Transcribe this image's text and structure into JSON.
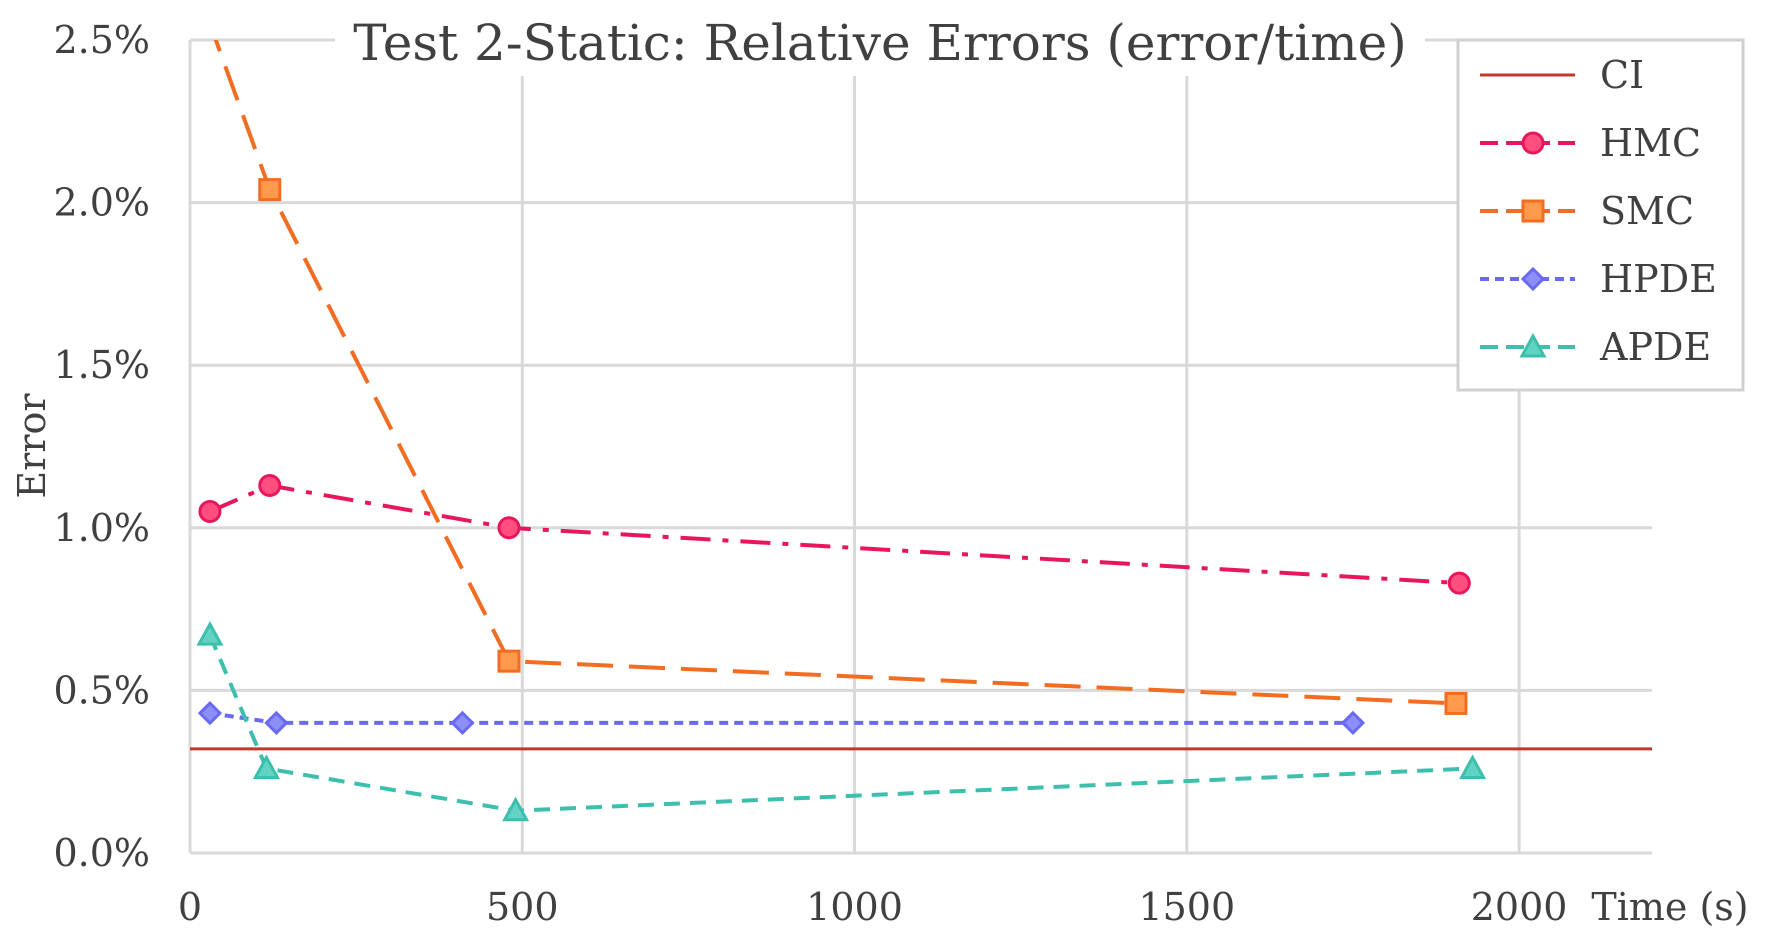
{
  "chart_data": {
    "type": "line",
    "title": "Test 2-Static: Relative Errors (error/time)",
    "xlabel": "Time (s)",
    "ylabel": "Error",
    "xlim": [
      0,
      2200
    ],
    "ylim": [
      0,
      2.5
    ],
    "x_ticks": [
      0,
      500,
      1000,
      1500,
      2000
    ],
    "x_tick_labels": [
      "0",
      "500",
      "1000",
      "1500",
      "2000"
    ],
    "y_ticks": [
      0,
      0.5,
      1.0,
      1.5,
      2.0,
      2.5
    ],
    "y_tick_labels": [
      "0.0%",
      "0.5%",
      "1.0%",
      "1.5%",
      "2.0%",
      "2.5%"
    ],
    "grid": true,
    "legend_position": "top-right",
    "series": [
      {
        "name": "CI",
        "color": "#c0392b",
        "dash": "solid",
        "marker": "none",
        "x": [
          0,
          2200
        ],
        "y": [
          0.32,
          0.32
        ]
      },
      {
        "name": "HMC",
        "color": "#e8175d",
        "dash": "dashdot",
        "marker": "circle",
        "x": [
          30,
          120,
          480,
          1910
        ],
        "y": [
          1.05,
          1.13,
          1.0,
          0.83
        ]
      },
      {
        "name": "SMC",
        "color": "#f26d21",
        "dash": "dashed",
        "marker": "square",
        "x": [
          0,
          120,
          480,
          1905
        ],
        "y": [
          2.72,
          2.04,
          0.59,
          0.46
        ]
      },
      {
        "name": "HPDE",
        "color": "#6a6af0",
        "dash": "dotted",
        "marker": "diamond",
        "x": [
          30,
          130,
          410,
          1750
        ],
        "y": [
          0.43,
          0.4,
          0.4,
          0.4
        ]
      },
      {
        "name": "APDE",
        "color": "#3dbfad",
        "dash": "shortdash",
        "marker": "triangle",
        "x": [
          30,
          115,
          490,
          1930
        ],
        "y": [
          0.67,
          0.26,
          0.13,
          0.26
        ]
      }
    ]
  }
}
